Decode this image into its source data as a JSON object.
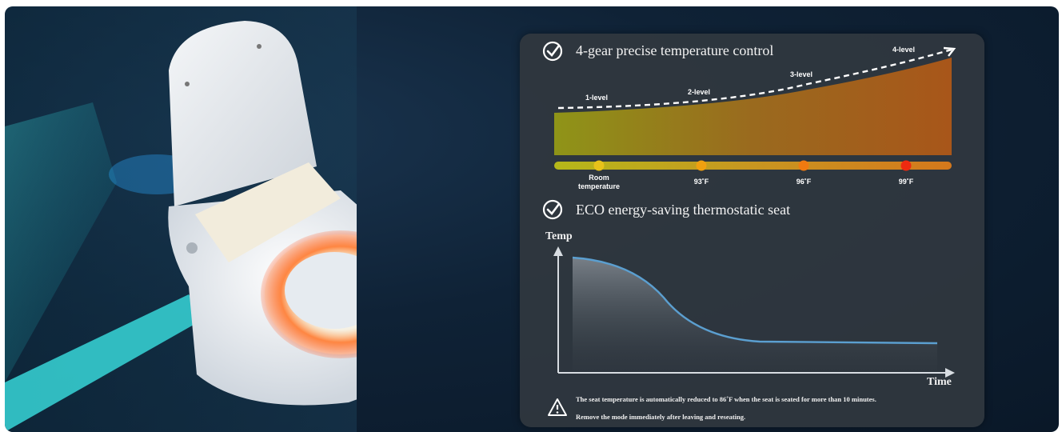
{
  "section1": {
    "title": "4-gear precise temperature control",
    "levels": [
      "1-level",
      "2-level",
      "3-level",
      "4-level"
    ],
    "temps": [
      "Room temperature",
      "93˚F",
      "96˚F",
      "99˚F"
    ],
    "dot_colors": [
      "#e8c21a",
      "#f0a010",
      "#f07a10",
      "#ee2a10"
    ]
  },
  "section2": {
    "title": "ECO energy-saving thermostatic seat",
    "y_axis": "Temp",
    "x_axis": "Time"
  },
  "notice": {
    "line1": "The seat temperature is automatically reduced to 86˚F when the seat is seated for more than 10 minutes.",
    "line2": "Remove the mode immediately after leaving and reseating."
  }
}
